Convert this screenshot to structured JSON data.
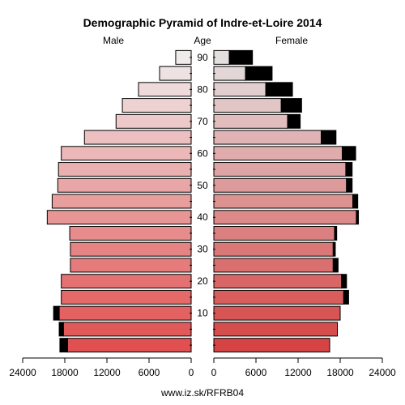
{
  "chart_data": {
    "type": "bar",
    "title": "Demographic Pyramid of Indre-et-Loire 2014",
    "left_label": "Male",
    "center_label": "Age",
    "right_label": "Female",
    "footer": "www.iz.sk/RFRB04",
    "xlim": [
      0,
      24000
    ],
    "x_ticks": [
      0,
      6000,
      12000,
      18000,
      24000
    ],
    "x_tick_labels": [
      "0",
      "6000",
      "12000",
      "18000",
      "24000"
    ],
    "y_ticks": [
      10,
      20,
      30,
      40,
      50,
      60,
      70,
      80,
      90
    ],
    "y_tick_labels": [
      "10",
      "20",
      "30",
      "40",
      "50",
      "60",
      "70",
      "80",
      "90"
    ],
    "age_groups": [
      "0-4",
      "5-9",
      "10-14",
      "15-19",
      "20-24",
      "25-29",
      "30-34",
      "35-39",
      "40-44",
      "45-49",
      "50-54",
      "55-59",
      "60-64",
      "65-69",
      "70-74",
      "75-79",
      "80-84",
      "85-89",
      "90-94"
    ],
    "series": [
      {
        "name": "Male",
        "values": [
          17600,
          18200,
          18800,
          18500,
          18500,
          17200,
          17200,
          17300,
          20500,
          19800,
          19000,
          18900,
          18500,
          15200,
          10700,
          9800,
          7500,
          4500,
          2200
        ],
        "excess": [
          1100,
          600,
          800,
          0,
          0,
          0,
          0,
          0,
          0,
          0,
          0,
          0,
          0,
          0,
          0,
          0,
          0,
          0,
          0
        ]
      },
      {
        "name": "Female",
        "values": [
          16500,
          17600,
          18000,
          18500,
          18200,
          17000,
          17000,
          17200,
          20300,
          19800,
          18900,
          18800,
          18300,
          15300,
          10500,
          9600,
          7400,
          4500,
          2200
        ],
        "excess": [
          0,
          0,
          0,
          700,
          700,
          700,
          300,
          300,
          300,
          700,
          800,
          900,
          1900,
          2100,
          1800,
          2900,
          3800,
          3800,
          3300
        ]
      }
    ],
    "colors": {
      "excess": "#000000",
      "young": [
        225,
        80,
        80
      ],
      "old": [
        240,
        235,
        235
      ]
    }
  }
}
